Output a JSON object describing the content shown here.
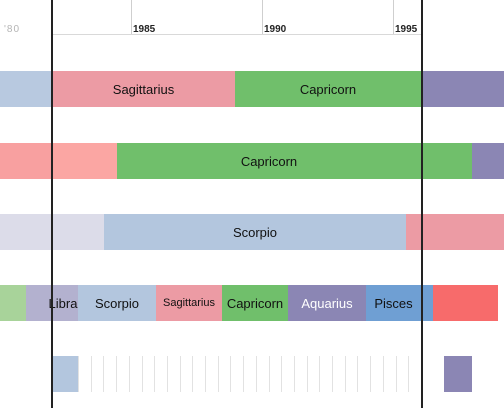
{
  "timeline": {
    "ghost_label": "'80",
    "year_ticks": [
      {
        "label": "1985"
      },
      {
        "label": "1990"
      },
      {
        "label": "1995"
      }
    ],
    "colors": {
      "sagittarius": "#ec9ba4",
      "capricorn": "#70bf6b",
      "aquarius": "#8b86b4",
      "pisces": "#6f9fd3",
      "scorpio": "#b3c6de",
      "libra": "#b3b1cf",
      "aries": "#f76b6b",
      "pale_lilac": "#dcdce9",
      "salmon": "#f8a0a0"
    },
    "rows": [
      {
        "segments": [
          {
            "name": "left-stub",
            "label": "",
            "color": "#b8c9e0"
          },
          {
            "name": "sagittarius",
            "label": "Sagittarius",
            "color": "#ec9ba4"
          },
          {
            "name": "capricorn",
            "label": "Capricorn",
            "color": "#70bf6b"
          },
          {
            "name": "right-stub",
            "label": "",
            "color": "#8b86b4"
          }
        ]
      },
      {
        "segments": [
          {
            "name": "left-stub",
            "label": "",
            "color": "#f8a0a0"
          },
          {
            "name": "sagittarius-tail",
            "label": "",
            "color": "#fba6a3"
          },
          {
            "name": "capricorn",
            "label": "Capricorn",
            "color": "#70bf6b"
          },
          {
            "name": "right-stub",
            "label": "",
            "color": "#8b86b4"
          }
        ]
      },
      {
        "segments": [
          {
            "name": "left-stub",
            "label": "",
            "color": "#dcdce9"
          },
          {
            "name": "libra-tail",
            "label": "",
            "color": "#dcdce9"
          },
          {
            "name": "scorpio",
            "label": "Scorpio",
            "color": "#b3c6de"
          },
          {
            "name": "sagittarius-head",
            "label": "",
            "color": "#ec9ba4"
          }
        ]
      },
      {
        "segments": [
          {
            "name": "virgo-stub",
            "label": "",
            "color": "#a8d39a"
          },
          {
            "name": "libra",
            "label": "Libra",
            "color": "#b3b1cf"
          },
          {
            "name": "scorpio",
            "label": "Scorpio",
            "color": "#b3c6de"
          },
          {
            "name": "sagittarius",
            "label": "Sagittarius",
            "color": "#ec9ba4"
          },
          {
            "name": "capricorn",
            "label": "Capricorn",
            "color": "#70bf6b"
          },
          {
            "name": "aquarius",
            "label": "Aquarius",
            "color": "#8b86b4"
          },
          {
            "name": "pisces",
            "label": "Pisces",
            "color": "#6f9fd3"
          },
          {
            "name": "aries",
            "label": "",
            "color": "#f76b6b"
          }
        ]
      },
      {
        "segments": [
          {
            "name": "scorpio-stub",
            "label": "",
            "color": "#b3c6de"
          },
          {
            "name": "right-stub",
            "label": "",
            "color": "#8b86b4"
          }
        ]
      }
    ]
  }
}
